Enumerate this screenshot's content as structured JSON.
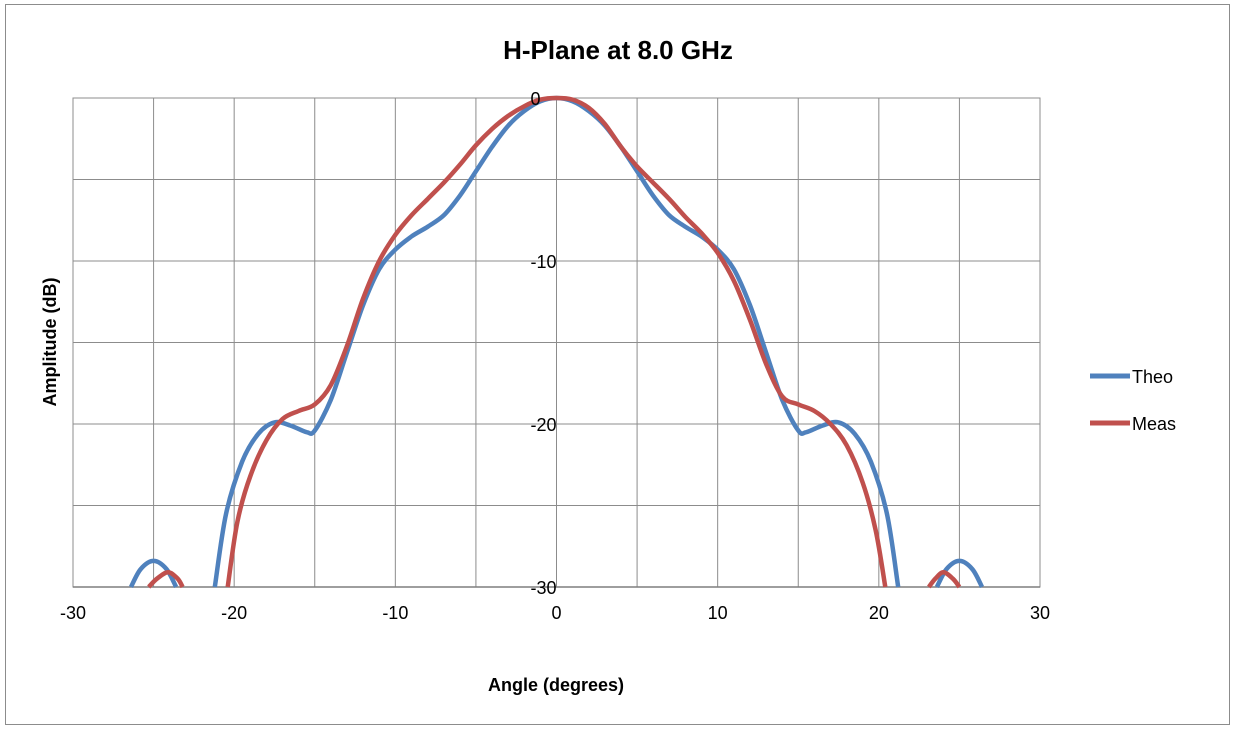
{
  "chart_data": {
    "type": "line",
    "title": "H-Plane at 8.0 GHz",
    "xlabel": "Angle (degrees)",
    "ylabel": "Amplitude (dB)",
    "xlim": [
      -30,
      30
    ],
    "ylim": [
      -30,
      0
    ],
    "x_major_step": 10,
    "y_major_step": 10,
    "y_minor_step": 5,
    "x_ticks": [
      "-30",
      "-20",
      "-10",
      "0",
      "10",
      "20",
      "30"
    ],
    "y_ticks": [
      "0",
      "-10",
      "-20",
      "-30"
    ],
    "grid": true,
    "legend_position": "right",
    "series": [
      {
        "name": "Theo",
        "color": "#4F81BD",
        "segments": [
          [
            [
              -26.4,
              -30
            ],
            [
              -25.8,
              -28.9
            ],
            [
              -25.0,
              -28.4
            ],
            [
              -24.2,
              -28.9
            ],
            [
              -23.6,
              -30
            ]
          ],
          [
            [
              -21.2,
              -30
            ],
            [
              -20.5,
              -25.5
            ],
            [
              -19.5,
              -22.3
            ],
            [
              -18.5,
              -20.6
            ],
            [
              -17.5,
              -19.9
            ],
            [
              -16.5,
              -20.1
            ],
            [
              -15.5,
              -20.5
            ],
            [
              -15.0,
              -20.4
            ],
            [
              -14.0,
              -18.5
            ],
            [
              -13.0,
              -15.6
            ],
            [
              -12.0,
              -12.7
            ],
            [
              -11.0,
              -10.5
            ],
            [
              -10.0,
              -9.3
            ],
            [
              -9.0,
              -8.5
            ],
            [
              -8.0,
              -7.9
            ],
            [
              -7.0,
              -7.2
            ],
            [
              -6.0,
              -6.0
            ],
            [
              -5.0,
              -4.5
            ],
            [
              -4.0,
              -3.0
            ],
            [
              -3.0,
              -1.7
            ],
            [
              -2.0,
              -0.8
            ],
            [
              -1.0,
              -0.2
            ],
            [
              0.0,
              0.0
            ],
            [
              1.0,
              -0.2
            ],
            [
              2.0,
              -0.8
            ],
            [
              3.0,
              -1.7
            ],
            [
              4.0,
              -3.0
            ],
            [
              5.0,
              -4.5
            ],
            [
              6.0,
              -6.0
            ],
            [
              7.0,
              -7.2
            ],
            [
              8.0,
              -7.9
            ],
            [
              9.0,
              -8.5
            ],
            [
              10.0,
              -9.3
            ],
            [
              11.0,
              -10.5
            ],
            [
              12.0,
              -12.7
            ],
            [
              13.0,
              -15.6
            ],
            [
              14.0,
              -18.5
            ],
            [
              15.0,
              -20.4
            ],
            [
              15.5,
              -20.5
            ],
            [
              16.5,
              -20.1
            ],
            [
              17.5,
              -19.9
            ],
            [
              18.5,
              -20.6
            ],
            [
              19.5,
              -22.3
            ],
            [
              20.5,
              -25.5
            ],
            [
              21.2,
              -30
            ]
          ],
          [
            [
              23.6,
              -30
            ],
            [
              24.2,
              -28.9
            ],
            [
              25.0,
              -28.4
            ],
            [
              25.8,
              -28.9
            ],
            [
              26.4,
              -30
            ]
          ]
        ]
      },
      {
        "name": "Meas",
        "color": "#C0504D",
        "segments": [
          [
            [
              -25.3,
              -30
            ],
            [
              -24.8,
              -29.5
            ],
            [
              -24.1,
              -29.1
            ],
            [
              -23.5,
              -29.5
            ],
            [
              -23.2,
              -30
            ]
          ],
          [
            [
              -20.4,
              -30
            ],
            [
              -19.8,
              -26.0
            ],
            [
              -19.0,
              -23.2
            ],
            [
              -18.0,
              -21.0
            ],
            [
              -17.0,
              -19.7
            ],
            [
              -16.0,
              -19.2
            ],
            [
              -15.0,
              -18.8
            ],
            [
              -14.0,
              -17.6
            ],
            [
              -13.0,
              -15.2
            ],
            [
              -12.0,
              -12.3
            ],
            [
              -11.0,
              -10.0
            ],
            [
              -10.0,
              -8.4
            ],
            [
              -9.0,
              -7.2
            ],
            [
              -8.0,
              -6.2
            ],
            [
              -7.0,
              -5.2
            ],
            [
              -6.0,
              -4.1
            ],
            [
              -5.0,
              -2.9
            ],
            [
              -4.0,
              -1.9
            ],
            [
              -3.0,
              -1.1
            ],
            [
              -2.0,
              -0.5
            ],
            [
              -1.0,
              -0.1
            ],
            [
              0.0,
              0.0
            ],
            [
              1.0,
              -0.1
            ],
            [
              2.0,
              -0.6
            ],
            [
              3.0,
              -1.6
            ],
            [
              4.0,
              -3.0
            ],
            [
              5.0,
              -4.2
            ],
            [
              6.0,
              -5.2
            ],
            [
              7.0,
              -6.2
            ],
            [
              8.0,
              -7.3
            ],
            [
              9.0,
              -8.3
            ],
            [
              10.0,
              -9.5
            ],
            [
              11.0,
              -11.2
            ],
            [
              12.0,
              -13.6
            ],
            [
              13.0,
              -16.3
            ],
            [
              14.0,
              -18.3
            ],
            [
              15.0,
              -18.8
            ],
            [
              16.0,
              -19.2
            ],
            [
              17.0,
              -20.0
            ],
            [
              18.0,
              -21.3
            ],
            [
              19.0,
              -23.6
            ],
            [
              19.8,
              -26.5
            ],
            [
              20.4,
              -30
            ]
          ],
          [
            [
              23.1,
              -30
            ],
            [
              23.5,
              -29.5
            ],
            [
              24.0,
              -29.1
            ],
            [
              24.6,
              -29.5
            ],
            [
              25.0,
              -30
            ]
          ]
        ]
      }
    ]
  }
}
